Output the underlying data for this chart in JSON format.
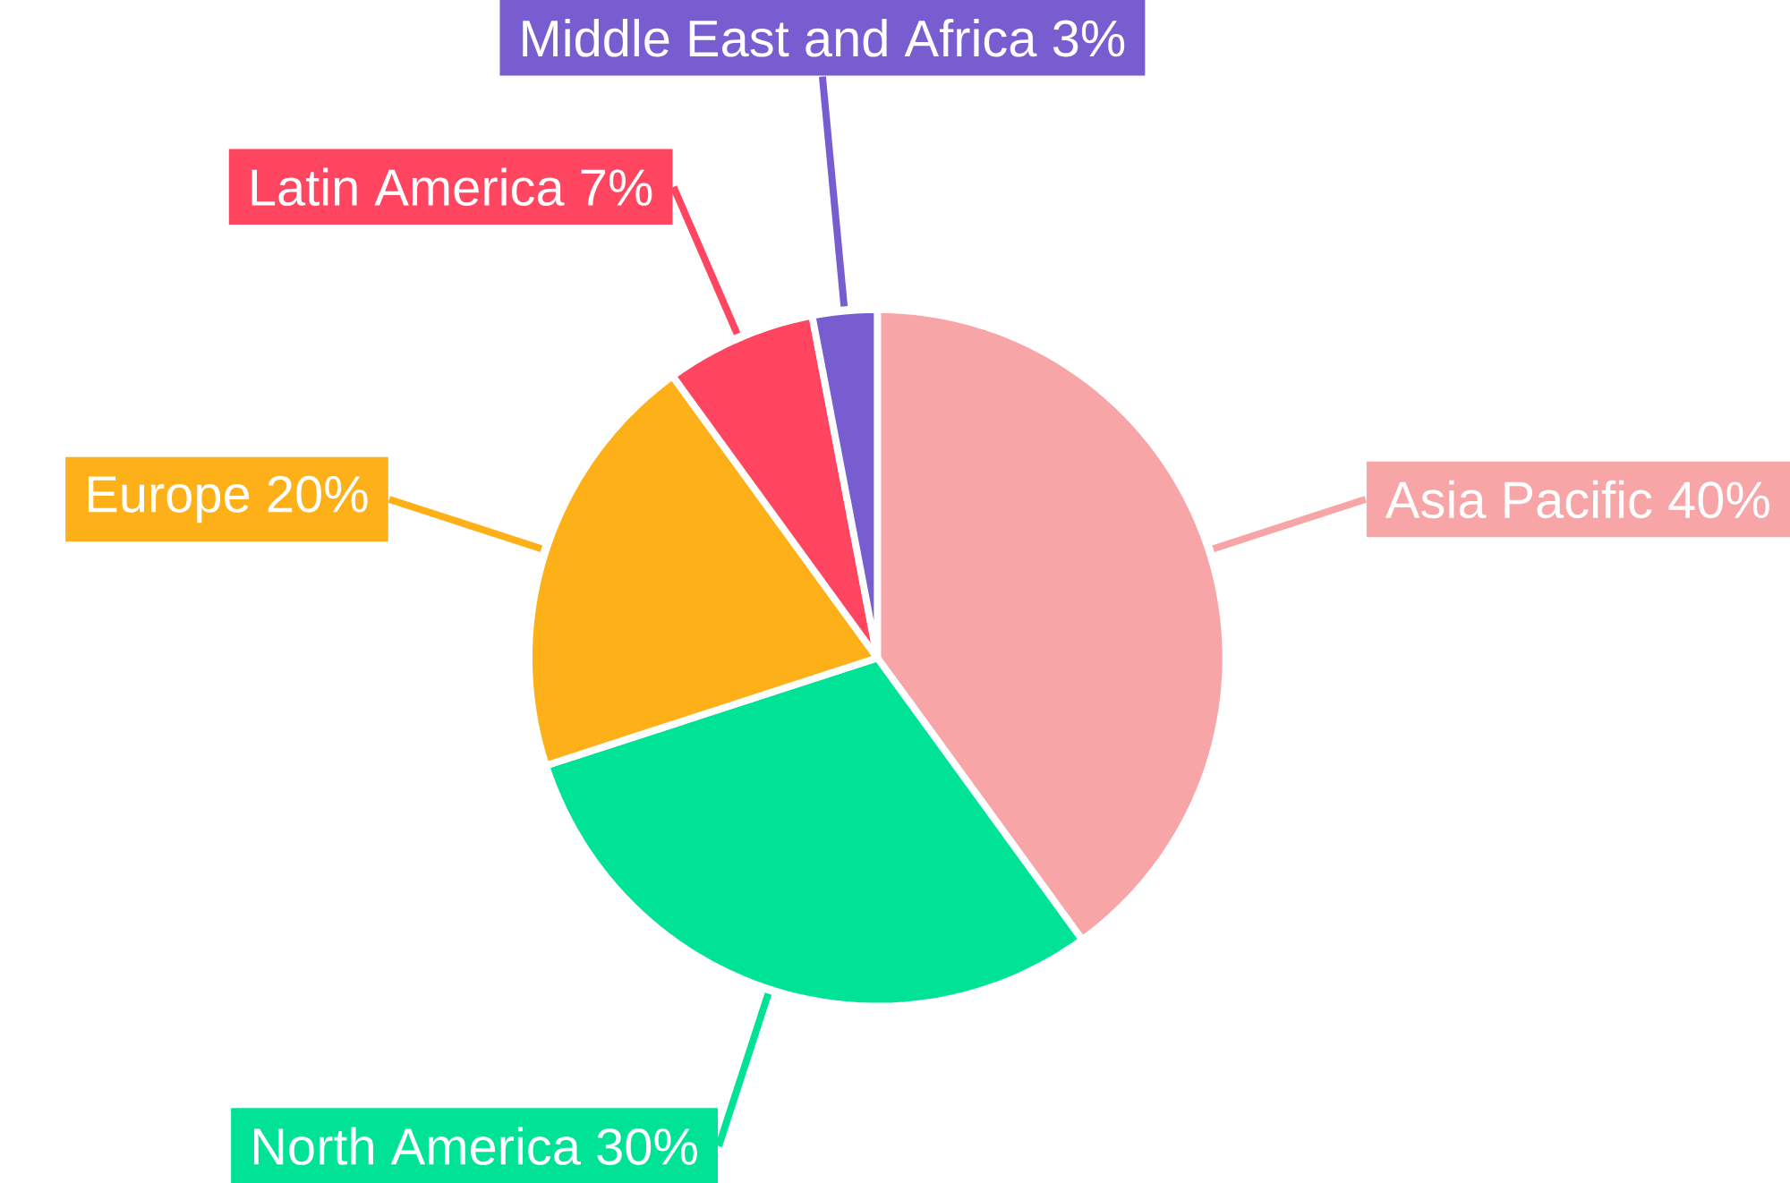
{
  "chart_data": {
    "type": "pie",
    "categories": [
      "Asia Pacific",
      "North America",
      "Europe",
      "Latin America",
      "Middle East and Africa"
    ],
    "values": [
      40,
      30,
      20,
      7,
      3
    ],
    "value_labels": [
      "40%",
      "30%",
      "20%",
      "7%",
      "3%"
    ],
    "colors": [
      "#f8a5a7",
      "#00e396",
      "#feb019",
      "#ff4560",
      "#775dd0"
    ]
  }
}
